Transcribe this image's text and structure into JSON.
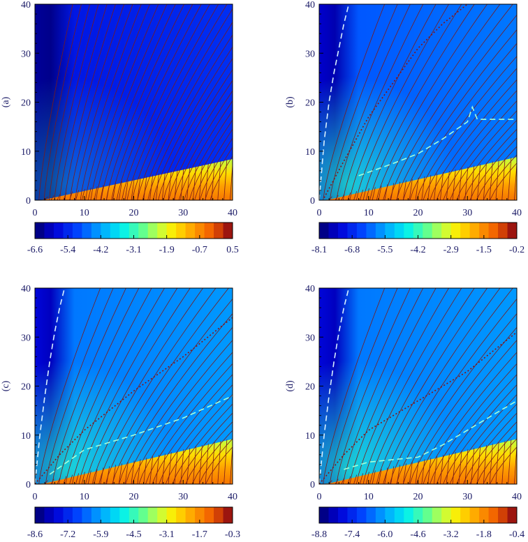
{
  "chart_data": [
    {
      "type": "heatmap",
      "panel_label": "(a)",
      "x_ticks": [
        "0",
        "10",
        "20",
        "30",
        "40"
      ],
      "y_ticks": [
        "0",
        "10",
        "20",
        "30",
        "40"
      ],
      "xlim": [
        0,
        40
      ],
      "ylim": [
        0,
        40
      ],
      "colorbar": {
        "ticks": [
          "-6.6",
          "-5.4",
          "-4.2",
          "-3.1",
          "-1.9",
          "-0.7",
          "0.5"
        ],
        "min": -6.6,
        "max": 0.5
      },
      "disk_boundary_slope": 0.21,
      "background_level": 0.08,
      "dashed_contour": null,
      "dotted_contour": null,
      "colors": {
        "field_line": "#7a1a1a",
        "dashed": "#d8f0ff",
        "dotted": "#8a1010"
      }
    },
    {
      "type": "heatmap",
      "panel_label": "(b)",
      "x_ticks": [
        "0",
        "10",
        "20",
        "30",
        "40"
      ],
      "y_ticks": [
        "0",
        "10",
        "20",
        "30",
        "40"
      ],
      "xlim": [
        0,
        40
      ],
      "ylim": [
        0,
        40
      ],
      "colorbar": {
        "ticks": [
          "-8.1",
          "-6.8",
          "-5.5",
          "-4.2",
          "-2.9",
          "-1.5",
          "-0.2"
        ],
        "min": -8.1,
        "max": -0.2
      },
      "disk_boundary_slope": 0.22,
      "background_level": 0.18,
      "dashed_contour": {
        "x": [
          0,
          1,
          2,
          3,
          4,
          5,
          6
        ],
        "y": [
          0,
          12,
          20,
          26,
          31,
          36,
          40
        ]
      },
      "dotted_contour": {
        "x": [
          1,
          5,
          10,
          15,
          20,
          25,
          30
        ],
        "y": [
          0.5,
          8,
          17,
          24,
          31,
          36,
          40
        ]
      },
      "dashed_contour_2": {
        "x": [
          8,
          15,
          20,
          25,
          30,
          31,
          32,
          40
        ],
        "y": [
          5,
          7.5,
          9.5,
          12.5,
          16,
          19,
          16.5,
          16.5
        ]
      },
      "colors": {
        "field_line": "#7a1a1a",
        "dashed": "#d8f0ff",
        "dotted": "#8a1010"
      }
    },
    {
      "type": "heatmap",
      "panel_label": "(c)",
      "x_ticks": [
        "0",
        "10",
        "20",
        "30",
        "40"
      ],
      "y_ticks": [
        "0",
        "10",
        "20",
        "30",
        "40"
      ],
      "xlim": [
        0,
        40
      ],
      "ylim": [
        0,
        40
      ],
      "colorbar": {
        "ticks": [
          "-8.6",
          "-7.2",
          "-5.9",
          "-4.5",
          "-3.1",
          "-1.7",
          "-0.3"
        ],
        "min": -8.6,
        "max": -0.3
      },
      "disk_boundary_slope": 0.23,
      "background_level": 0.22,
      "dashed_contour": {
        "x": [
          0,
          1,
          2,
          3,
          4,
          5,
          6
        ],
        "y": [
          0,
          10,
          18,
          25,
          31,
          36,
          40
        ]
      },
      "dotted_contour": {
        "x": [
          0,
          5,
          10,
          20,
          30,
          40
        ],
        "y": [
          0,
          6,
          11,
          19,
          26,
          34
        ]
      },
      "dashed_contour_2": {
        "x": [
          3,
          10,
          20,
          30,
          40
        ],
        "y": [
          2,
          7,
          10,
          13.5,
          18
        ]
      },
      "colors": {
        "field_line": "#7a1a1a",
        "dashed": "#d8f0ff",
        "dotted": "#8a1010"
      }
    },
    {
      "type": "heatmap",
      "panel_label": "(d)",
      "x_ticks": [
        "0",
        "10",
        "20",
        "30",
        "40"
      ],
      "y_ticks": [
        "0",
        "10",
        "20",
        "30",
        "40"
      ],
      "xlim": [
        0,
        40
      ],
      "ylim": [
        0,
        40
      ],
      "colorbar": {
        "ticks": [
          "-8.8",
          "-7.4",
          "-6.0",
          "-4.6",
          "-3.2",
          "-1.8",
          "-0.4"
        ],
        "min": -8.8,
        "max": -0.4
      },
      "disk_boundary_slope": 0.23,
      "background_level": 0.22,
      "dashed_contour": {
        "x": [
          0,
          1,
          2,
          3,
          4,
          5,
          6
        ],
        "y": [
          0,
          10,
          18,
          25,
          31,
          36,
          40
        ]
      },
      "dotted_contour": {
        "x": [
          0,
          5,
          10,
          20,
          30,
          40
        ],
        "y": [
          0,
          6,
          11,
          17,
          23,
          31
        ]
      },
      "dashed_contour_2": {
        "x": [
          5,
          10,
          20,
          25,
          30,
          35,
          40
        ],
        "y": [
          3,
          4.5,
          5.5,
          8,
          11,
          14,
          17
        ]
      },
      "colors": {
        "field_line": "#7a1a1a",
        "dashed": "#d8f0ff",
        "dotted": "#8a1010"
      }
    }
  ]
}
